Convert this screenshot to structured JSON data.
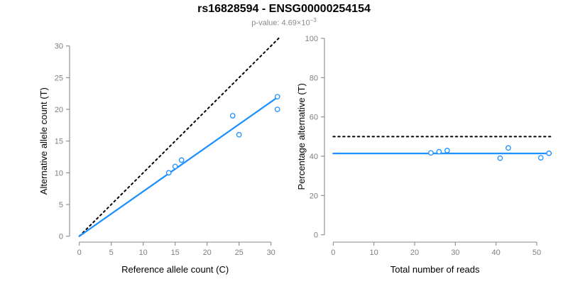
{
  "header": {
    "title": "rs16828594 - ENSG00000254154",
    "subtitle_text": "p-value: 4.69×10",
    "subtitle_exponent": "−3"
  },
  "colors": {
    "accent_blue": "#1E90FF",
    "reference_line_black": "#000000",
    "axis_gray": "#8a8a8a",
    "tick_label_gray": "#7f7f7f",
    "subtitle_gray": "#8a8a8a"
  },
  "chart_data": [
    {
      "type": "scatter",
      "position": "left",
      "xlabel": "Reference allele count (C)",
      "ylabel": "Alternative allele count (T)",
      "xlim": [
        0,
        31.5
      ],
      "ylim": [
        0,
        31
      ],
      "xticks": [
        0,
        5,
        10,
        15,
        20,
        25,
        30
      ],
      "yticks": [
        0,
        5,
        10,
        15,
        20,
        25,
        30
      ],
      "grid": false,
      "legend": null,
      "points": [
        [
          14,
          10
        ],
        [
          15,
          11
        ],
        [
          16,
          12
        ],
        [
          24,
          19
        ],
        [
          25,
          16
        ],
        [
          31,
          20
        ],
        [
          31,
          22
        ]
      ],
      "lines": [
        {
          "name": "identity-expected",
          "style": "dotted",
          "color": "#000000",
          "from": [
            0,
            0
          ],
          "to": [
            31.2,
            31.2
          ]
        },
        {
          "name": "fitted-ratio",
          "style": "solid",
          "color": "#1E90FF",
          "from": [
            0,
            0
          ],
          "to": [
            31.3,
            22.1
          ]
        }
      ]
    },
    {
      "type": "scatter",
      "position": "right",
      "xlabel": "Total number of reads",
      "ylabel": "Percentage alternative (T)",
      "xlim": [
        0,
        54
      ],
      "ylim": [
        0,
        100
      ],
      "xticks": [
        0,
        10,
        20,
        30,
        40,
        50
      ],
      "yticks": [
        0,
        20,
        40,
        60,
        80,
        100
      ],
      "grid": false,
      "legend": null,
      "points": [
        [
          24,
          41.7
        ],
        [
          26,
          42.3
        ],
        [
          28,
          42.9
        ],
        [
          41,
          39.0
        ],
        [
          43,
          44.2
        ],
        [
          51,
          39.2
        ],
        [
          53,
          41.5
        ]
      ],
      "lines": [
        {
          "name": "expected-50-percent",
          "style": "dotted",
          "color": "#000000",
          "from": [
            0,
            50
          ],
          "to": [
            53.5,
            50
          ]
        },
        {
          "name": "mean-percentage",
          "style": "solid",
          "color": "#1E90FF",
          "from": [
            0,
            41.4
          ],
          "to": [
            53.5,
            41.4
          ]
        }
      ]
    }
  ]
}
